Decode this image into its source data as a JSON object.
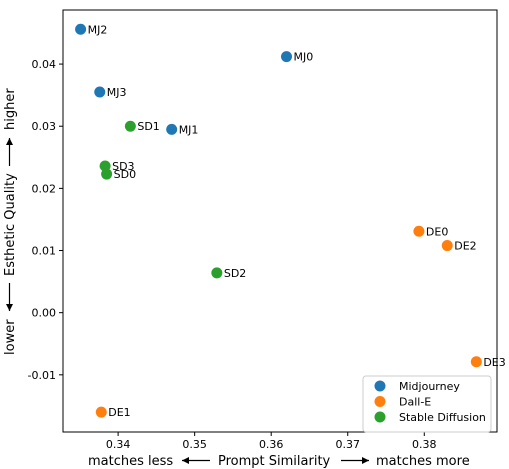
{
  "chart_data": {
    "type": "scatter",
    "title": "",
    "xlabel": {
      "left": "matches less",
      "center": "Prompt Similarity",
      "right": "matches more"
    },
    "ylabel": {
      "bottom": "lower",
      "center": "Esthetic Quality",
      "top": "higher"
    },
    "xlim": [
      0.3328,
      0.3895
    ],
    "ylim": [
      -0.0192,
      0.0487
    ],
    "xticks": [
      0.34,
      0.35,
      0.36,
      0.37,
      0.38
    ],
    "xtick_labels": [
      "0.34",
      "0.35",
      "0.36",
      "0.37",
      "0.38"
    ],
    "yticks": [
      -0.01,
      0.0,
      0.01,
      0.02,
      0.03,
      0.04
    ],
    "ytick_labels": [
      "-0.01",
      "0.00",
      "0.01",
      "0.02",
      "0.03",
      "0.04"
    ],
    "grid": false,
    "legend_position": "bottom-right",
    "series": [
      {
        "name": "Midjourney",
        "color": "#1f77b4",
        "points": [
          {
            "label": "MJ0",
            "x": 0.362,
            "y": 0.0412
          },
          {
            "label": "MJ1",
            "x": 0.347,
            "y": 0.0295
          },
          {
            "label": "MJ2",
            "x": 0.3351,
            "y": 0.0456
          },
          {
            "label": "MJ3",
            "x": 0.3376,
            "y": 0.0355
          }
        ]
      },
      {
        "name": "Dall-E",
        "color": "#ff7f0e",
        "points": [
          {
            "label": "DE0",
            "x": 0.3793,
            "y": 0.0131
          },
          {
            "label": "DE1",
            "x": 0.3378,
            "y": -0.016
          },
          {
            "label": "DE2",
            "x": 0.383,
            "y": 0.0108
          },
          {
            "label": "DE3",
            "x": 0.3868,
            "y": -0.0079
          }
        ]
      },
      {
        "name": "Stable Diffusion",
        "color": "#2ca02c",
        "points": [
          {
            "label": "SD0",
            "x": 0.3385,
            "y": 0.0223
          },
          {
            "label": "SD1",
            "x": 0.3416,
            "y": 0.03
          },
          {
            "label": "SD2",
            "x": 0.3529,
            "y": 0.0064
          },
          {
            "label": "SD3",
            "x": 0.3383,
            "y": 0.0236
          }
        ]
      }
    ]
  }
}
